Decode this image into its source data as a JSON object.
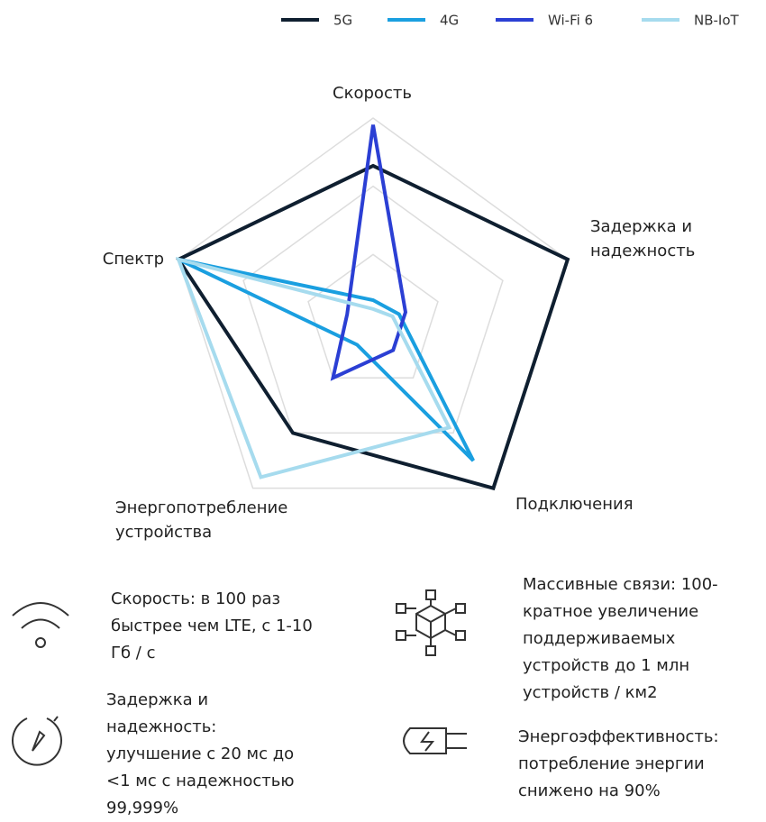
{
  "chart_data": {
    "type": "radar",
    "categories": [
      "Скорость",
      "Задержка и надежность",
      "Подключения",
      "Энергопотребление устройства",
      "Спектр"
    ],
    "rlim": [
      0,
      3
    ],
    "rticks": [
      1,
      2,
      3
    ],
    "grid": true,
    "legend": "top-right",
    "series": [
      {
        "name": "5G",
        "color": "#0f1f30",
        "values": [
          2.3,
          3,
          3,
          2,
          3
        ]
      },
      {
        "name": "4G",
        "color": "#1a9fe0",
        "values": [
          0.33,
          0.4,
          2.5,
          0.4,
          3
        ]
      },
      {
        "name": "Wi-Fi 6",
        "color": "#2b3fd4",
        "values": [
          2.9,
          0.5,
          0.5,
          1,
          0.4
        ]
      },
      {
        "name": "NB-IoT",
        "color": "#a6dbee",
        "values": [
          0.2,
          0.3,
          1.9,
          2.8,
          3
        ]
      }
    ]
  },
  "features": [
    {
      "lines": [
        "Скорость: в 100 раз",
        "быстрее чем LTE, с 1-10",
        "Гб / с"
      ]
    },
    {
      "lines": [
        "Задержка и",
        "надежность:",
        "улучшение с 20 мс до",
        "<1 мс с надежностью",
        "99,999%"
      ]
    },
    {
      "lines": [
        "Массивные связи: 100-",
        "кратное увеличение",
        "поддерживаемых",
        "устройств до 1 млн",
        "устройств / км2"
      ]
    },
    {
      "lines": [
        "Энергоэффективность:",
        "потребление энергии",
        "снижено на 90%"
      ]
    }
  ]
}
